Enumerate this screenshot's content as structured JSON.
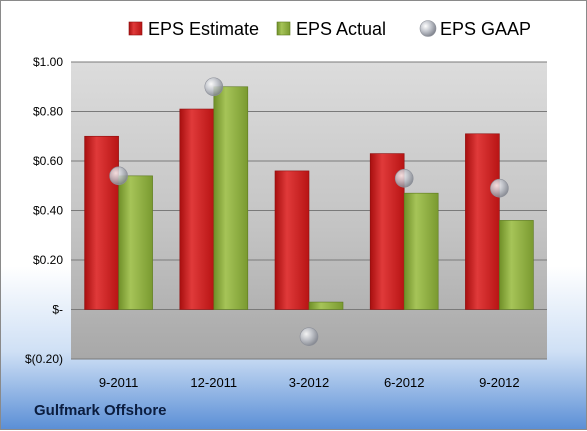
{
  "footer": {
    "company": "Gulfmark Offshore"
  },
  "colors": {
    "estimate": "#cc1f1f",
    "actual": "#8cad3c",
    "gaap": "#b9bcc4",
    "plot_bg": "#cfcfcf"
  },
  "chart_data": {
    "type": "bar",
    "categories": [
      "9-2011",
      "12-2011",
      "3-2012",
      "6-2012",
      "9-2012"
    ],
    "series": [
      {
        "name": "EPS Estimate",
        "type": "bar",
        "values": [
          0.7,
          0.81,
          0.56,
          0.63,
          0.71
        ]
      },
      {
        "name": "EPS Actual",
        "type": "bar",
        "values": [
          0.54,
          0.9,
          0.03,
          0.47,
          0.36
        ]
      },
      {
        "name": "EPS GAAP",
        "type": "scatter",
        "values": [
          0.54,
          0.9,
          -0.11,
          0.53,
          0.49
        ]
      }
    ],
    "ylim": [
      -0.2,
      1.0
    ],
    "yticks": [
      -0.2,
      0,
      0.2,
      0.4,
      0.6,
      0.8,
      1.0
    ],
    "ytick_labels": [
      "$(0.20)",
      "$-",
      "$0.20",
      "$0.40",
      "$0.60",
      "$0.80",
      "$1.00"
    ],
    "grid": true,
    "legend": "top"
  }
}
